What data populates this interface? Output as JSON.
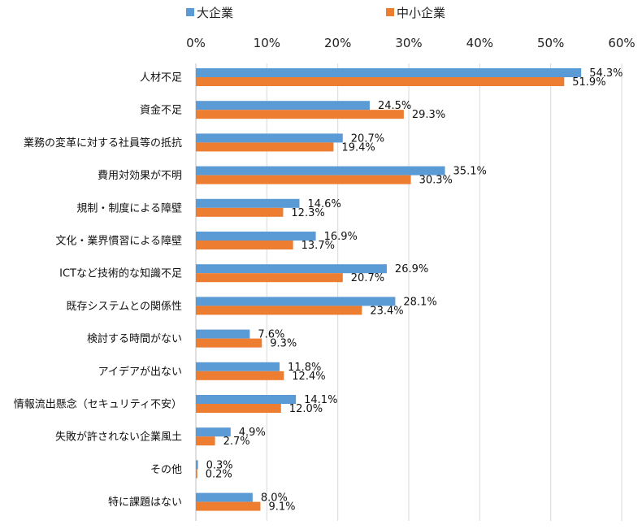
{
  "chart_data": {
    "type": "bar",
    "orientation": "horizontal",
    "xlim": [
      0,
      60
    ],
    "xticks": [
      "0%",
      "10%",
      "20%",
      "30%",
      "40%",
      "50%",
      "60%"
    ],
    "xtick_values": [
      0,
      10,
      20,
      30,
      40,
      50,
      60
    ],
    "grid": true,
    "legend_position": "top-left",
    "categories": [
      "人材不足",
      "資金不足",
      "業務の変革に対する社員等の抵抗",
      "費用対効果が不明",
      "規制・制度による障壁",
      "文化・業界慣習による障壁",
      "ICTなど技術的な知識不足",
      "既存システムとの関係性",
      "検討する時間がない",
      "アイデアが出ない",
      "情報流出懸念（セキュリティ不安）",
      "失敗が許されない企業風土",
      "その他",
      "特に課題はない"
    ],
    "series": [
      {
        "name": "大企業",
        "color": "#5b9bd5",
        "values": [
          54.3,
          24.5,
          20.7,
          35.1,
          14.6,
          16.9,
          26.9,
          28.1,
          7.6,
          11.8,
          14.1,
          4.9,
          0.3,
          8.0
        ],
        "labels": [
          "54.3%",
          "24.5%",
          "20.7%",
          "35.1%",
          "14.6%",
          "16.9%",
          "26.9%",
          "28.1%",
          "7.6%",
          "11.8%",
          "14.1%",
          "4.9%",
          "0.3%",
          "8.0%"
        ]
      },
      {
        "name": "中小企業",
        "color": "#ed7d31",
        "values": [
          51.9,
          29.3,
          19.4,
          30.3,
          12.3,
          13.7,
          20.7,
          23.4,
          9.3,
          12.4,
          12.0,
          2.7,
          0.2,
          9.1
        ],
        "labels": [
          "51.9%",
          "29.3%",
          "19.4%",
          "30.3%",
          "12.3%",
          "13.7%",
          "20.7%",
          "23.4%",
          "9.3%",
          "12.4%",
          "12.0%",
          "2.7%",
          "0.2%",
          "9.1%"
        ]
      }
    ]
  }
}
